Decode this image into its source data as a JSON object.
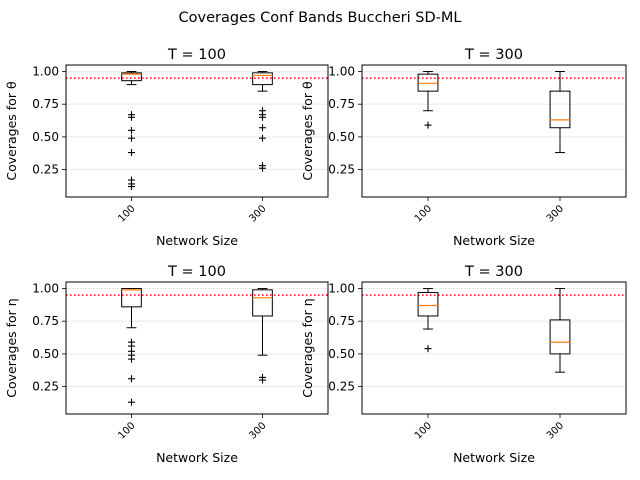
{
  "figure": {
    "suptitle": "Coverages Conf Bands Buccheri SD-ML",
    "reference_line_color": "#ff0000",
    "median_color": "#ff7f0e",
    "grid_color": "#e6e6e6"
  },
  "chart_data": [
    {
      "type": "box",
      "title": "T = 100",
      "xlabel": "Network Size",
      "ylabel": "Coverages for θ",
      "categories": [
        "100",
        "300"
      ],
      "ylim": [
        0.04,
        1.05
      ],
      "yticks": [
        "0.25",
        "0.50",
        "0.75",
        "1.00"
      ],
      "grid": "horizontal",
      "reference_line": 0.95,
      "boxes": [
        {
          "category": "100",
          "whisker_low": 0.9,
          "q1": 0.93,
          "median": 0.98,
          "q3": 0.99,
          "whisker_high": 1.0,
          "outliers": [
            0.67,
            0.65,
            0.55,
            0.49,
            0.38,
            0.17,
            0.14,
            0.12
          ]
        },
        {
          "category": "300",
          "whisker_low": 0.85,
          "q1": 0.9,
          "median": 0.97,
          "q3": 0.99,
          "whisker_high": 1.0,
          "outliers": [
            0.7,
            0.67,
            0.65,
            0.57,
            0.49,
            0.28,
            0.26
          ]
        }
      ]
    },
    {
      "type": "box",
      "title": "T = 300",
      "xlabel": "Network Size",
      "ylabel": "Coverages for θ",
      "categories": [
        "100",
        "300"
      ],
      "ylim": [
        0.04,
        1.05
      ],
      "yticks": [
        "0.25",
        "0.50",
        "0.75",
        "1.00"
      ],
      "grid": "horizontal",
      "reference_line": 0.95,
      "boxes": [
        {
          "category": "100",
          "whisker_low": 0.7,
          "q1": 0.85,
          "median": 0.91,
          "q3": 0.98,
          "whisker_high": 1.0,
          "outliers": [
            0.59
          ]
        },
        {
          "category": "300",
          "whisker_low": 0.38,
          "q1": 0.57,
          "median": 0.63,
          "q3": 0.85,
          "whisker_high": 1.0,
          "outliers": []
        }
      ]
    },
    {
      "type": "box",
      "title": "T = 100",
      "xlabel": "Network Size",
      "ylabel": "Coverages for η",
      "categories": [
        "100",
        "300"
      ],
      "ylim": [
        0.04,
        1.05
      ],
      "yticks": [
        "0.25",
        "0.50",
        "0.75",
        "1.00"
      ],
      "grid": "horizontal",
      "reference_line": 0.95,
      "boxes": [
        {
          "category": "100",
          "whisker_low": 0.7,
          "q1": 0.86,
          "median": 0.99,
          "q3": 1.0,
          "whisker_high": 1.0,
          "outliers": [
            0.59,
            0.56,
            0.52,
            0.49,
            0.46,
            0.31,
            0.13
          ]
        },
        {
          "category": "300",
          "whisker_low": 0.49,
          "q1": 0.79,
          "median": 0.93,
          "q3": 0.99,
          "whisker_high": 1.0,
          "outliers": [
            0.32,
            0.3
          ]
        }
      ]
    },
    {
      "type": "box",
      "title": "T = 300",
      "xlabel": "Network Size",
      "ylabel": "Coverages for η",
      "categories": [
        "100",
        "300"
      ],
      "ylim": [
        0.04,
        1.05
      ],
      "yticks": [
        "0.25",
        "0.50",
        "0.75",
        "1.00"
      ],
      "grid": "horizontal",
      "reference_line": 0.95,
      "boxes": [
        {
          "category": "100",
          "whisker_low": 0.69,
          "q1": 0.79,
          "median": 0.87,
          "q3": 0.97,
          "whisker_high": 1.0,
          "outliers": [
            0.54
          ]
        },
        {
          "category": "300",
          "whisker_low": 0.36,
          "q1": 0.5,
          "median": 0.59,
          "q3": 0.76,
          "whisker_high": 1.0,
          "outliers": []
        }
      ]
    }
  ]
}
